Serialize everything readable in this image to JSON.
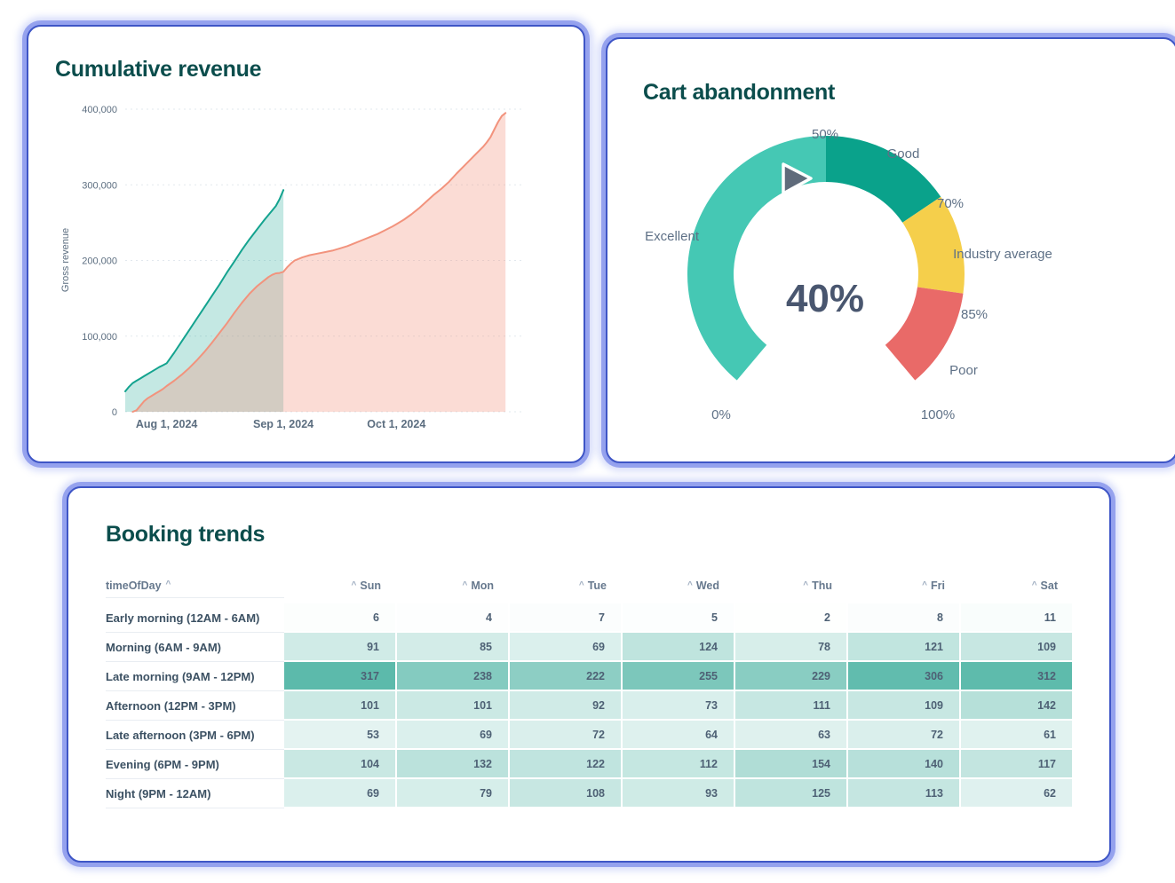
{
  "accent_colors": {
    "card_border": "#3e55c6",
    "title_color": "#0b4d4c",
    "axis_text": "#5c6e80"
  },
  "chart_data": [
    {
      "id": "cumulative_revenue",
      "type": "area",
      "title": "Cumulative revenue",
      "xlabel": "",
      "ylabel": "Gross revenue",
      "ylim": [
        0,
        400000
      ],
      "grid": true,
      "legend": "none",
      "yticks": [
        {
          "v": 0,
          "label": "0"
        },
        {
          "v": 100000,
          "label": "100,000"
        },
        {
          "v": 200000,
          "label": "200,000"
        },
        {
          "v": 300000,
          "label": "300,000"
        },
        {
          "v": 400000,
          "label": "400,000"
        }
      ],
      "xticks": [
        {
          "day": 11,
          "label": "Aug 1, 2024"
        },
        {
          "day": 42,
          "label": "Sep 1, 2024"
        },
        {
          "day": 72,
          "label": "Oct 1, 2024"
        }
      ],
      "x_domain": [
        0,
        101
      ],
      "series": [
        {
          "name": "previous_period",
          "color": "#14a38f",
          "fill": "rgba(20,163,143,0.25)",
          "points": [
            [
              0,
              27000
            ],
            [
              1,
              33000
            ],
            [
              2,
              38000
            ],
            [
              3,
              41000
            ],
            [
              4,
              44000
            ],
            [
              5,
              47000
            ],
            [
              6,
              50000
            ],
            [
              7,
              53000
            ],
            [
              8,
              56000
            ],
            [
              9,
              59000
            ],
            [
              10,
              61500
            ],
            [
              11,
              64000
            ],
            [
              13,
              78000
            ],
            [
              15,
              93000
            ],
            [
              17,
              108000
            ],
            [
              19,
              123000
            ],
            [
              21,
              138000
            ],
            [
              23,
              153000
            ],
            [
              25,
              168000
            ],
            [
              27,
              184000
            ],
            [
              29,
              199000
            ],
            [
              31,
              214000
            ],
            [
              33,
              228000
            ],
            [
              35,
              241000
            ],
            [
              37,
              254000
            ],
            [
              39,
              266000
            ],
            [
              40,
              272000
            ],
            [
              41,
              281000
            ],
            [
              42,
              293000
            ]
          ]
        },
        {
          "name": "current_period",
          "color": "#f2937d",
          "fill": "rgba(242,147,125,0.32)",
          "points": [
            [
              2,
              0
            ],
            [
              3,
              2000
            ],
            [
              4,
              8000
            ],
            [
              5,
              14000
            ],
            [
              6,
              18000
            ],
            [
              7,
              21000
            ],
            [
              8,
              24000
            ],
            [
              9,
              27000
            ],
            [
              10,
              30000
            ],
            [
              11,
              34000
            ],
            [
              13,
              41000
            ],
            [
              15,
              49000
            ],
            [
              17,
              58000
            ],
            [
              19,
              68000
            ],
            [
              21,
              79000
            ],
            [
              23,
              91000
            ],
            [
              25,
              104000
            ],
            [
              27,
              117000
            ],
            [
              29,
              131000
            ],
            [
              31,
              144000
            ],
            [
              33,
              156000
            ],
            [
              35,
              166000
            ],
            [
              37,
              174000
            ],
            [
              38,
              178000
            ],
            [
              39,
              181000
            ],
            [
              40,
              183000
            ],
            [
              41,
              183500
            ],
            [
              42,
              185000
            ],
            [
              43,
              191000
            ],
            [
              44,
              196000
            ],
            [
              45,
              200000
            ],
            [
              47,
              204000
            ],
            [
              49,
              207000
            ],
            [
              51,
              209000
            ],
            [
              53,
              211000
            ],
            [
              55,
              213000
            ],
            [
              57,
              216000
            ],
            [
              59,
              219000
            ],
            [
              61,
              223000
            ],
            [
              63,
              227000
            ],
            [
              65,
              231000
            ],
            [
              67,
              235000
            ],
            [
              69,
              240000
            ],
            [
              71,
              245000
            ],
            [
              72,
              248000
            ],
            [
              74,
              254000
            ],
            [
              76,
              261000
            ],
            [
              78,
              269000
            ],
            [
              80,
              278000
            ],
            [
              82,
              287000
            ],
            [
              84,
              295000
            ],
            [
              86,
              304000
            ],
            [
              88,
              315000
            ],
            [
              90,
              325000
            ],
            [
              91,
              330000
            ],
            [
              93,
              340000
            ],
            [
              95,
              350000
            ],
            [
              96,
              356000
            ],
            [
              97,
              363000
            ],
            [
              98,
              373000
            ],
            [
              99,
              383000
            ],
            [
              100,
              391000
            ],
            [
              101,
              395000
            ]
          ]
        }
      ]
    },
    {
      "id": "cart_abandonment",
      "type": "gauge",
      "title": "Cart abandonment",
      "value": 40,
      "value_label": "40%",
      "min": 0,
      "max": 100,
      "needle_color": "#5f6b7b",
      "segments": [
        {
          "label": "Excellent",
          "from": 0,
          "to": 50,
          "color": "#45c8b4"
        },
        {
          "label": "Good",
          "from": 50,
          "to": 70,
          "color": "#0aa28b"
        },
        {
          "label": "Industry average",
          "from": 70,
          "to": 85,
          "color": "#f5cf4b"
        },
        {
          "label": "Poor",
          "from": 85,
          "to": 100,
          "color": "#e96a68"
        }
      ],
      "tick_labels": [
        {
          "v": 0,
          "label": "0%"
        },
        {
          "v": 50,
          "label": "50%"
        },
        {
          "v": 70,
          "label": "70%"
        },
        {
          "v": 85,
          "label": "85%"
        },
        {
          "v": 100,
          "label": "100%"
        }
      ]
    },
    {
      "id": "booking_trends",
      "type": "heatmap",
      "title": "Booking trends",
      "row_header": "timeOfDay",
      "sort_caret": "^",
      "columns": [
        "Sun",
        "Mon",
        "Tue",
        "Wed",
        "Thu",
        "Fri",
        "Sat"
      ],
      "rows": [
        {
          "label": "Early morning (12AM - 6AM)",
          "values": [
            6,
            4,
            7,
            5,
            2,
            8,
            11
          ]
        },
        {
          "label": "Morning (6AM - 9AM)",
          "values": [
            91,
            85,
            69,
            124,
            78,
            121,
            109
          ]
        },
        {
          "label": "Late morning (9AM - 12PM)",
          "values": [
            317,
            238,
            222,
            255,
            229,
            306,
            312
          ]
        },
        {
          "label": "Afternoon (12PM - 3PM)",
          "values": [
            101,
            101,
            92,
            73,
            111,
            109,
            142
          ]
        },
        {
          "label": "Late afternoon (3PM - 6PM)",
          "values": [
            53,
            69,
            72,
            64,
            63,
            72,
            61
          ]
        },
        {
          "label": "Evening (6PM - 9PM)",
          "values": [
            104,
            132,
            122,
            112,
            154,
            140,
            117
          ]
        },
        {
          "label": "Night (9PM - 12AM)",
          "values": [
            69,
            79,
            108,
            93,
            125,
            113,
            62
          ]
        }
      ],
      "color_scale": {
        "min_color": "#ffffff",
        "max_color": "#5ab9aa",
        "max_color_rgb": [
          90,
          185,
          170
        ],
        "max_value": 320
      }
    }
  ]
}
